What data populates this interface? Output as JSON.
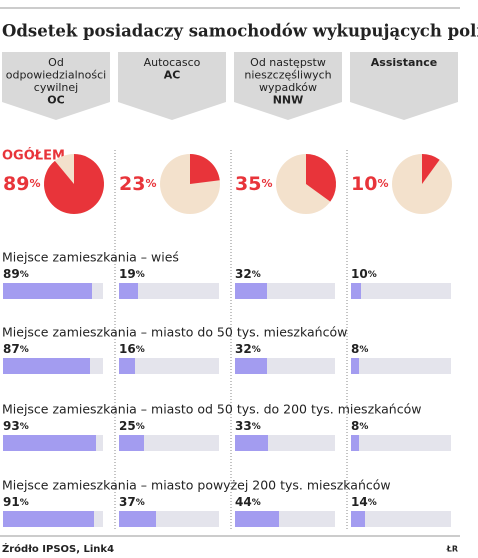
{
  "title": "Odsetek posiadaczy samochodów wykupujących polisy",
  "columns": [
    {
      "label": [
        "Od",
        "odpowiedzialności",
        "cywilnej"
      ],
      "code": "OC"
    },
    {
      "label": [
        "Autocasco"
      ],
      "code": "AC"
    },
    {
      "label": [
        "Od następstw",
        "nieszczęśliwych",
        "wypadków"
      ],
      "code": "NNW"
    },
    {
      "code": "Assistance"
    }
  ],
  "chart_data": [
    {
      "type": "pie",
      "label": "OGÓŁEM",
      "values": [
        89,
        23,
        35,
        10
      ],
      "value_labels": [
        "89%",
        "23%",
        "35%",
        "10%"
      ],
      "color": "#e8343a",
      "background": "#f3e1cc"
    },
    {
      "type": "bar",
      "xlim": [
        0,
        100
      ],
      "color": "#a39cf0",
      "track": "#e4e4ec",
      "groups": [
        {
          "label": "Miejsce zamieszkania – wieś",
          "values": [
            89,
            19,
            32,
            10
          ],
          "value_labels": [
            "89%",
            "19%",
            "32%",
            "10%"
          ]
        },
        {
          "label": "Miejsce zamieszkania – miasto do 50 tys. mieszkańców",
          "values": [
            87,
            16,
            32,
            8
          ],
          "value_labels": [
            "87%",
            "16%",
            "32%",
            "8%"
          ]
        },
        {
          "label": "Miejsce zamieszkania – miasto od 50 tys. do 200 tys. mieszkańców",
          "values": [
            93,
            25,
            33,
            8
          ],
          "value_labels": [
            "93%",
            "25%",
            "33%",
            "8%"
          ]
        },
        {
          "label": "Miejsce zamieszkania – miasto powyżej 200 tys. mieszkańców",
          "values": [
            91,
            37,
            44,
            14
          ],
          "value_labels": [
            "91%",
            "37%",
            "44%",
            "14%"
          ]
        }
      ]
    }
  ],
  "source": "Źródło IPSOS, Link4",
  "credit": "ŁR"
}
